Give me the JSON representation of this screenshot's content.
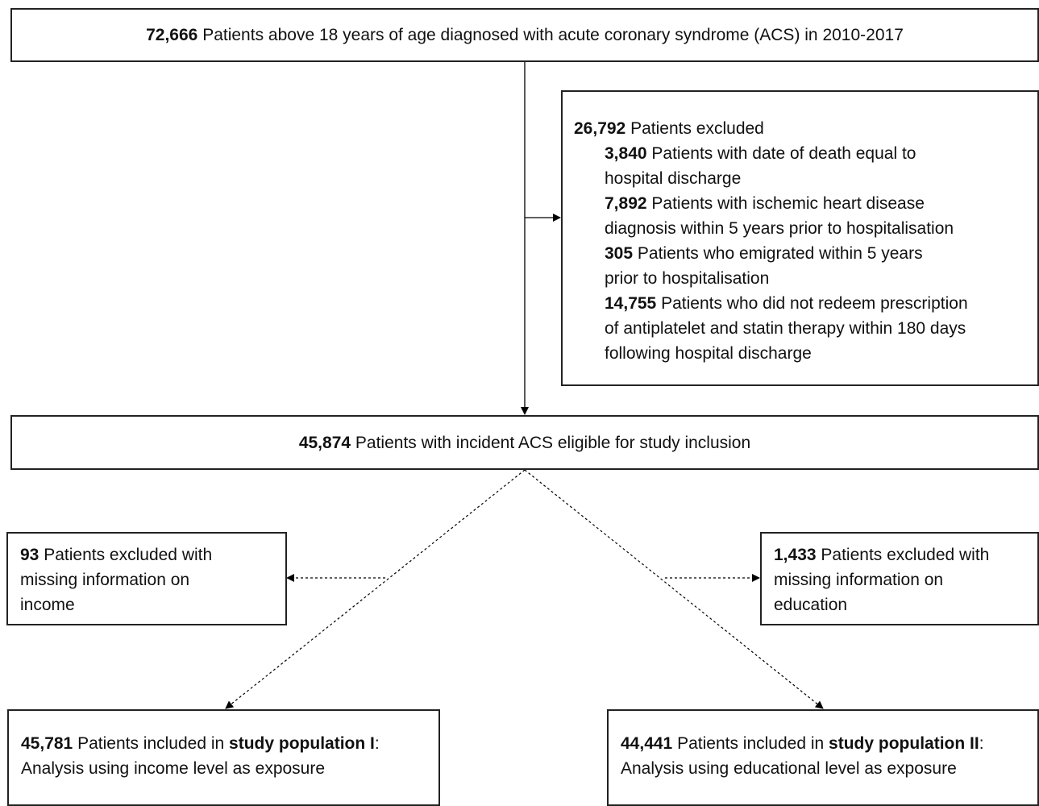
{
  "nodes": {
    "source": {
      "count": "72,666",
      "text": "Patients above 18 years of age diagnosed with acute coronary syndrome (ACS) in 2010-2017"
    },
    "excluded": {
      "count": "26,792",
      "text": "Patients excluded",
      "items": [
        {
          "count": "3,840",
          "lines": [
            "Patients with date of death equal to",
            "hospital discharge"
          ]
        },
        {
          "count": "7,892",
          "lines": [
            "Patients with ischemic heart disease",
            "diagnosis within 5 years prior to hospitalisation"
          ]
        },
        {
          "count": "305",
          "lines": [
            "Patients who emigrated within 5 years",
            "prior to hospitalisation"
          ]
        },
        {
          "count": "14,755",
          "lines": [
            "Patients who did not redeem prescription",
            "of antiplatelet and statin therapy within 180 days",
            "following hospital discharge"
          ]
        }
      ]
    },
    "eligible": {
      "count": "45,874",
      "text": "Patients with incident ACS eligible for study inclusion"
    },
    "income_excluded": {
      "count": "93",
      "lines": [
        "Patients excluded with",
        "missing information on",
        "income"
      ]
    },
    "education_excluded": {
      "count": "1,433",
      "lines": [
        "Patients excluded with",
        "missing information on",
        "education"
      ]
    },
    "population_1": {
      "count": "45,781",
      "text": "Patients included in",
      "group": "study population I",
      "suffix": ":",
      "line2": "Analysis using income level as exposure"
    },
    "population_2": {
      "count": "44,441",
      "text": "Patients included in",
      "group": "study population II",
      "suffix": ":",
      "line2": "Analysis using educational level as exposure"
    }
  }
}
